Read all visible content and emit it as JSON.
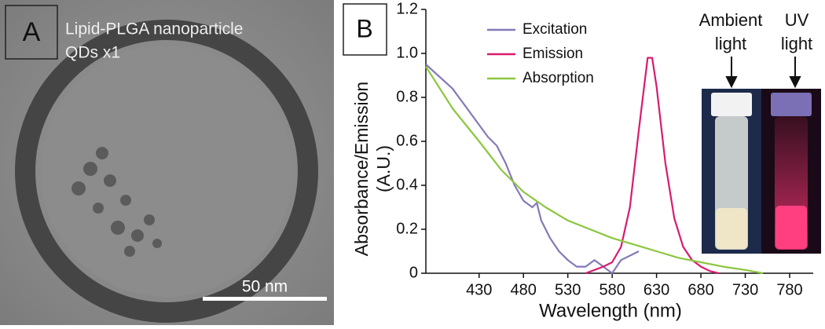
{
  "panel_a": {
    "label": "A",
    "caption": [
      "Lipid-PLGA nanoparticle",
      "QDs x1"
    ],
    "scale_bar": "50 nm"
  },
  "chart_data": {
    "type": "line",
    "panel_label": "B",
    "xlabel": "Wavelength (nm)",
    "ylabel": [
      "Absorbance/Emission",
      "(A.U.)"
    ],
    "xlim": [
      370,
      780
    ],
    "xticks": [
      430,
      480,
      530,
      580,
      630,
      680,
      730,
      780
    ],
    "ylim": [
      0,
      1.2
    ],
    "yticks": [
      0,
      0.2,
      0.4,
      0.6,
      0.8,
      {
        "value": 1,
        "label": "1.0"
      },
      1.2
    ],
    "legend": "top-left",
    "series": [
      {
        "name": "Excitation",
        "color": "#8479b8",
        "x": [
          370,
          400,
          420,
          440,
          450,
          460,
          470,
          480,
          490,
          495,
          500,
          510,
          520,
          530,
          540,
          550,
          560,
          570,
          580,
          590,
          600,
          610
        ],
        "values": [
          0.95,
          0.84,
          0.73,
          0.62,
          0.58,
          0.5,
          0.4,
          0.33,
          0.3,
          0.32,
          0.24,
          0.16,
          0.1,
          0.06,
          0.03,
          0.03,
          0.06,
          0.03,
          0.0,
          0.06,
          0.08,
          0.1
        ]
      },
      {
        "name": "Emission",
        "color": "#d81b6e",
        "x": [
          550,
          570,
          580,
          590,
          600,
          610,
          620,
          625,
          630,
          640,
          650,
          660,
          670,
          680,
          690,
          700
        ],
        "values": [
          0,
          0.03,
          0.05,
          0.12,
          0.3,
          0.65,
          0.98,
          0.98,
          0.85,
          0.5,
          0.25,
          0.12,
          0.06,
          0.03,
          0.01,
          0
        ]
      },
      {
        "name": "Absorption",
        "color": "#8cc63f",
        "x": [
          370,
          400,
          430,
          455,
          480,
          505,
          530,
          555,
          580,
          605,
          630,
          655,
          680,
          705,
          730,
          750
        ],
        "values": [
          0.94,
          0.75,
          0.6,
          0.47,
          0.37,
          0.3,
          0.24,
          0.2,
          0.16,
          0.13,
          0.1,
          0.07,
          0.05,
          0.03,
          0.015,
          0
        ]
      }
    ],
    "inset": {
      "ambient": [
        "Ambient",
        "light"
      ],
      "uv": [
        "UV",
        "light"
      ]
    }
  }
}
